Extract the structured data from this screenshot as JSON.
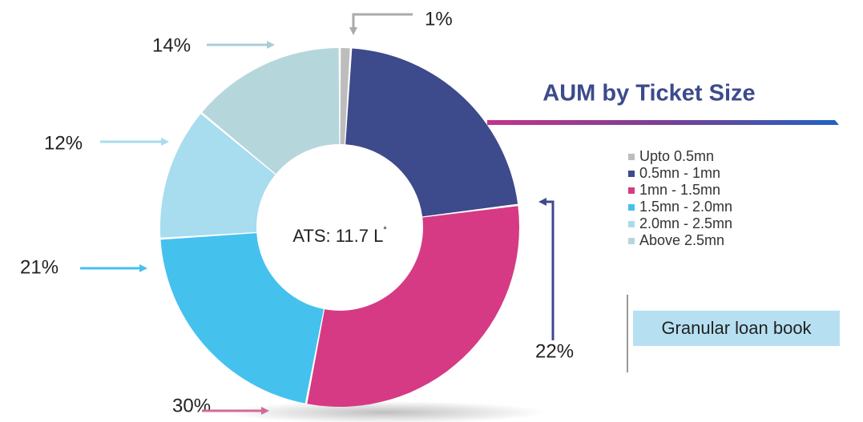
{
  "chart_data": {
    "type": "pie",
    "title": "AUM by Ticket Size",
    "categories": [
      "Upto 0.5mn",
      "0.5mn - 1mn",
      "1mn - 1.5mn",
      "1.5mn - 2.0mn",
      "2.0mn - 2.5mn",
      "Above 2.5mn"
    ],
    "values": [
      1,
      22,
      30,
      21,
      12,
      14
    ],
    "value_labels": [
      "1%",
      "22%",
      "30%",
      "21%",
      "12%",
      "14%"
    ],
    "colors": [
      "#bdbdbd",
      "#3d4a8b",
      "#d63a84",
      "#45c1ee",
      "#a8dcef",
      "#b5d7dc"
    ],
    "center_text": "ATS: 11.7 L",
    "center_text_sup": "*",
    "annotation": "Granular loan book"
  }
}
